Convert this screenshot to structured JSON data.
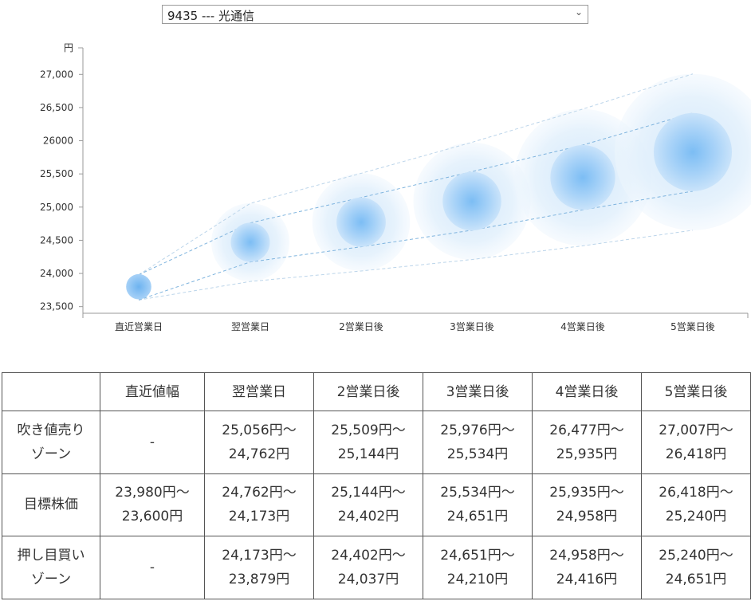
{
  "selector": {
    "value": "9435 --- 光通信"
  },
  "chart_data": {
    "type": "scatter",
    "yunit": "円",
    "categories": [
      "直近営業日",
      "翌営業日",
      "2営業日後",
      "3営業日後",
      "4営業日後",
      "5営業日後"
    ],
    "yticks": [
      "23,500",
      "24,000",
      "24,500",
      "25,000",
      "25,500",
      "26000",
      "26,500",
      "27,000"
    ],
    "ytick_values": [
      23500,
      24000,
      24500,
      25000,
      25500,
      26000,
      26500,
      27000
    ],
    "ylim": [
      23400,
      27400
    ],
    "center": [
      23800,
      24470,
      24773,
      25089,
      25447,
      25829
    ],
    "target_high": [
      23980,
      24762,
      25144,
      25534,
      25935,
      26418
    ],
    "target_low": [
      23600,
      24173,
      24402,
      24651,
      24958,
      25240
    ],
    "outer_high": [
      23980,
      25056,
      25509,
      25976,
      26477,
      27007
    ],
    "outer_low": [
      23600,
      23879,
      24037,
      24210,
      24416,
      24651
    ],
    "colors": {
      "center": "#4da3ee",
      "halo": "#d6eafc",
      "line": "#7fb4de",
      "outer_line": "#bcd5ea",
      "axis": "#999999"
    }
  },
  "table": {
    "headers": [
      "",
      "直近値幅",
      "翌営業日",
      "2営業日後",
      "3営業日後",
      "4営業日後",
      "5営業日後"
    ],
    "rows": [
      {
        "label": [
          "吹き値売り",
          "ゾーン"
        ],
        "cells": [
          [
            "-"
          ],
          [
            "25,056円〜",
            "24,762円"
          ],
          [
            "25,509円〜",
            "25,144円"
          ],
          [
            "25,976円〜",
            "25,534円"
          ],
          [
            "26,477円〜",
            "25,935円"
          ],
          [
            "27,007円〜",
            "26,418円"
          ]
        ]
      },
      {
        "label": [
          "目標株価"
        ],
        "cells": [
          [
            "23,980円〜",
            "23,600円"
          ],
          [
            "24,762円〜",
            "24,173円"
          ],
          [
            "25,144円〜",
            "24,402円"
          ],
          [
            "25,534円〜",
            "24,651円"
          ],
          [
            "25,935円〜",
            "24,958円"
          ],
          [
            "26,418円〜",
            "25,240円"
          ]
        ]
      },
      {
        "label": [
          "押し目買い",
          "ゾーン"
        ],
        "cells": [
          [
            "-"
          ],
          [
            "24,173円〜",
            "23,879円"
          ],
          [
            "24,402円〜",
            "24,037円"
          ],
          [
            "24,651円〜",
            "24,210円"
          ],
          [
            "24,958円〜",
            "24,416円"
          ],
          [
            "25,240円〜",
            "24,651円"
          ]
        ]
      }
    ]
  }
}
